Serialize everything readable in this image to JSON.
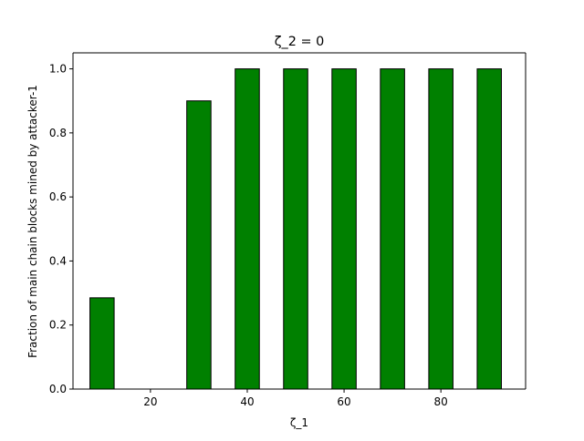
{
  "chart_data": {
    "type": "bar",
    "title": "ζ_2 = 0",
    "xlabel": "ζ_1",
    "ylabel": "Fraction of main chain blocks mined by attacker-1",
    "x": [
      10,
      20,
      30,
      40,
      50,
      60,
      70,
      80,
      90
    ],
    "values": [
      0.285,
      0.0,
      0.9,
      1.0,
      1.0,
      1.0,
      1.0,
      1.0,
      1.0
    ],
    "bar_width": 5,
    "xlim": [
      4.0,
      97.5
    ],
    "ylim": [
      0,
      1.05
    ],
    "xticks": [
      20,
      40,
      60,
      80
    ],
    "xtick_labels": [
      "20",
      "40",
      "60",
      "80"
    ],
    "yticks": [
      0.0,
      0.2,
      0.4,
      0.6,
      0.8,
      1.0
    ],
    "ytick_labels": [
      "0.0",
      "0.2",
      "0.4",
      "0.6",
      "0.8",
      "1.0"
    ],
    "bar_color": "#008000",
    "edge_color": "#000000",
    "grid": false,
    "legend": "none"
  }
}
